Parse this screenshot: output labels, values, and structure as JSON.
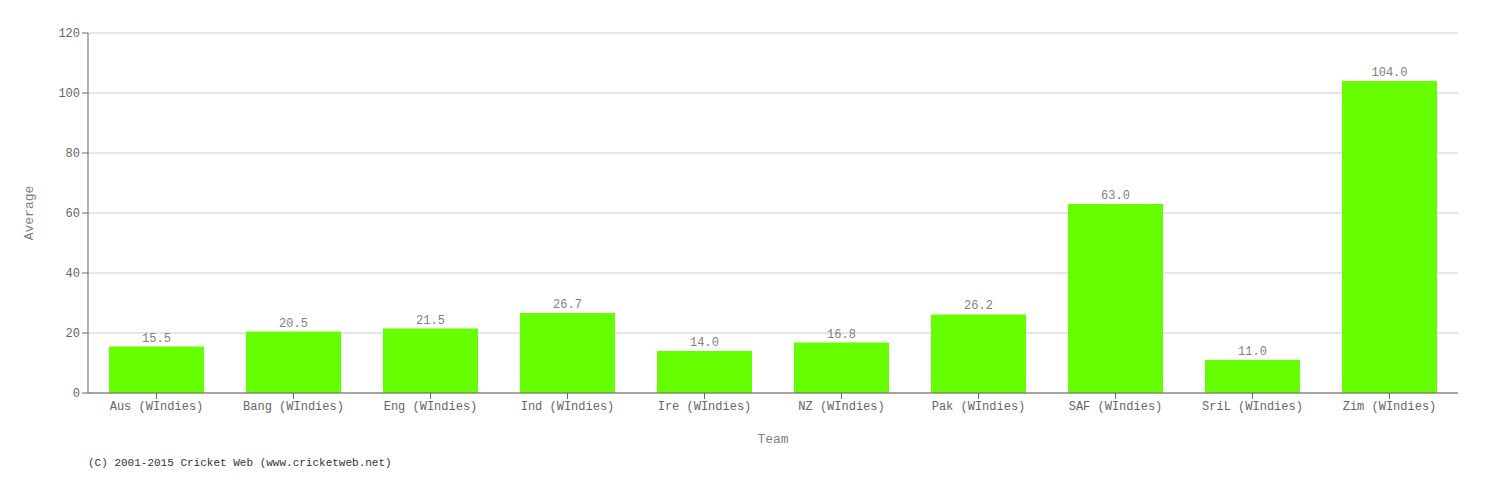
{
  "chart_data": {
    "type": "bar",
    "categories": [
      "Aus (WIndies)",
      "Bang (WIndies)",
      "Eng (WIndies)",
      "Ind (WIndies)",
      "Ire (WIndies)",
      "NZ (WIndies)",
      "Pak (WIndies)",
      "SAF (WIndies)",
      "SriL (WIndies)",
      "Zim (WIndies)"
    ],
    "values": [
      15.5,
      20.5,
      21.5,
      26.7,
      14.0,
      16.8,
      26.2,
      63.0,
      11.0,
      104.0
    ],
    "value_labels": [
      "15.5",
      "20.5",
      "21.5",
      "26.7",
      "14.0",
      "16.8",
      "26.2",
      "63.0",
      "11.0",
      "104.0"
    ],
    "color": "#66ff00",
    "xlabel": "Team",
    "ylabel": "Average",
    "ylim": [
      0,
      120
    ],
    "yticks": [
      0,
      20,
      40,
      60,
      80,
      100,
      120
    ],
    "grid": true,
    "data_labels": true,
    "annotations": [
      "(C) 2001-2015 Cricket Web (www.cricketweb.net)"
    ]
  }
}
